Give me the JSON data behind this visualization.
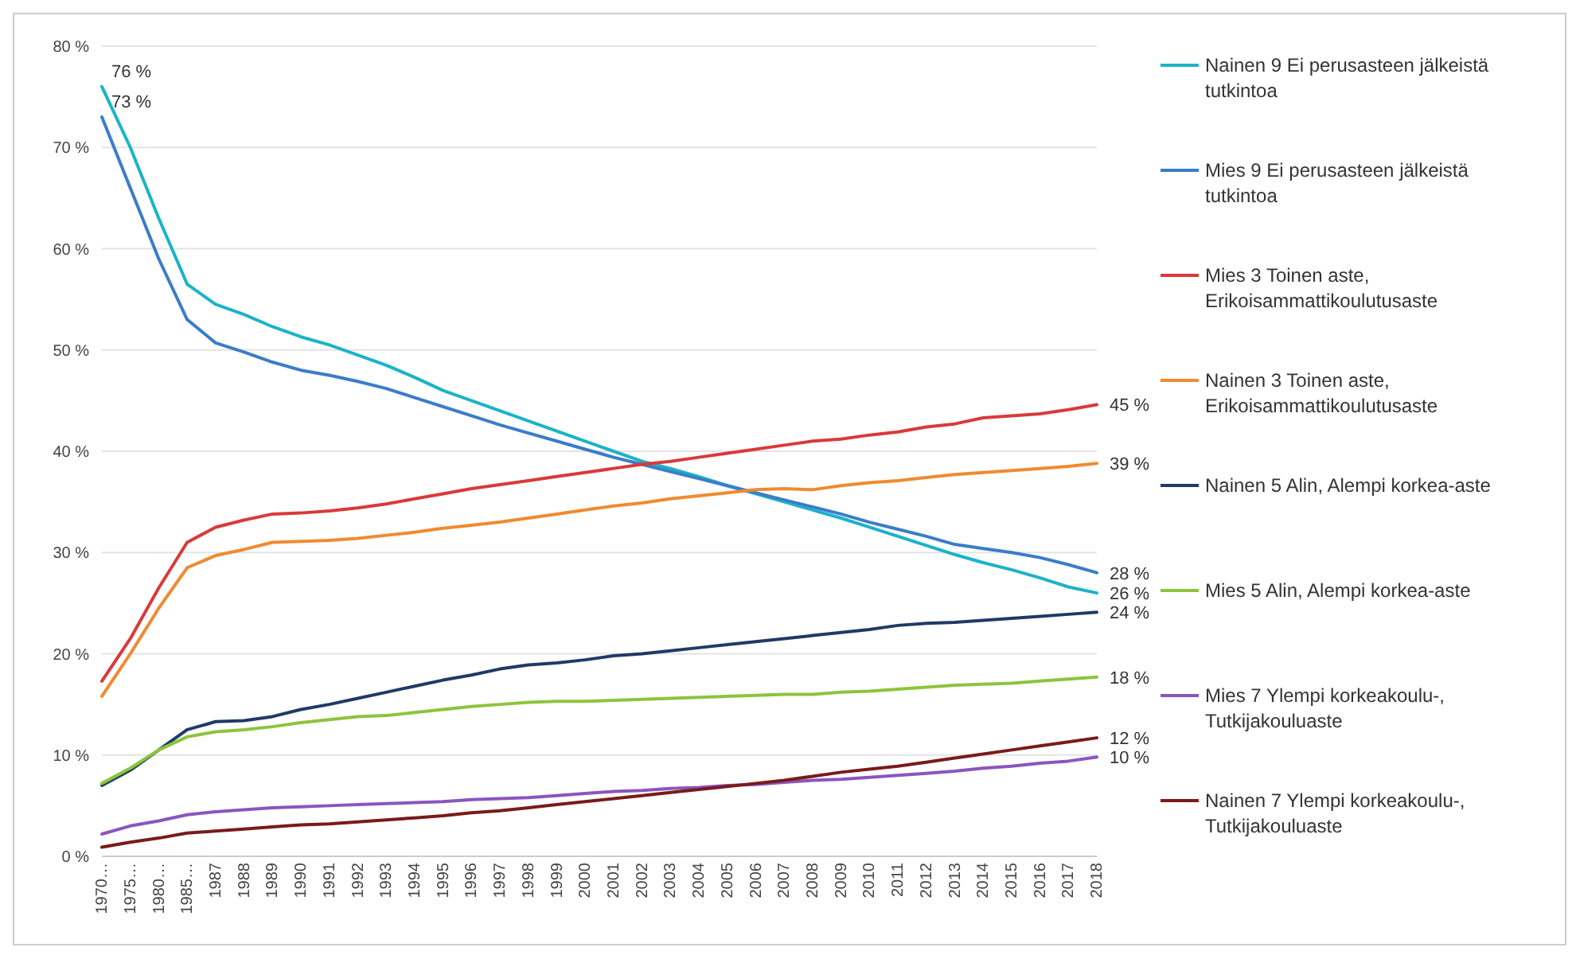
{
  "chart_data": {
    "type": "line",
    "categories": [
      "1970…",
      "1975…",
      "1980…",
      "1985…",
      "1987",
      "1988",
      "1989",
      "1990",
      "1991",
      "1992",
      "1993",
      "1994",
      "1995",
      "1996",
      "1997",
      "1998",
      "1999",
      "2000",
      "2001",
      "2002",
      "2003",
      "2004",
      "2005",
      "2006",
      "2007",
      "2008",
      "2009",
      "2010",
      "2011",
      "2012",
      "2013",
      "2014",
      "2015",
      "2016",
      "2017",
      "2018"
    ],
    "ylim": [
      0,
      80
    ],
    "yticks": [
      {
        "value": 0,
        "label": "0 %"
      },
      {
        "value": 10,
        "label": "10 %"
      },
      {
        "value": 20,
        "label": "20 %"
      },
      {
        "value": 30,
        "label": "30 %"
      },
      {
        "value": 40,
        "label": "40 %"
      },
      {
        "value": 50,
        "label": "50 %"
      },
      {
        "value": 60,
        "label": "60 %"
      },
      {
        "value": 70,
        "label": "70 %"
      },
      {
        "value": 80,
        "label": "80 %"
      }
    ],
    "grid": "y",
    "legend": "right",
    "marker": "none",
    "line_style": "solid",
    "series": [
      {
        "name": "Nainen 9 Ei perusasteen jälkeistä tutkintoa",
        "color": "#1bb3c8",
        "values": [
          76,
          70,
          63,
          56.5,
          54.5,
          53.5,
          52.3,
          51.3,
          50.5,
          49.5,
          48.5,
          47.3,
          46,
          45,
          44,
          43,
          42,
          41,
          40,
          39,
          38.3,
          37.5,
          36.6,
          35.8,
          35,
          34.2,
          33.4,
          32.5,
          31.6,
          30.7,
          29.8,
          29,
          28.3,
          27.5,
          26.6,
          26
        ],
        "value_labels": [
          "76 %",
          null,
          null,
          null,
          null,
          null,
          null,
          null,
          null,
          null,
          null,
          null,
          null,
          null,
          null,
          null,
          null,
          null,
          null,
          null,
          null,
          null,
          null,
          null,
          null,
          null,
          null,
          null,
          null,
          null,
          null,
          null,
          null,
          null,
          null,
          "26 %"
        ]
      },
      {
        "name": "Mies 9 Ei perusasteen jälkeistä tutkintoa",
        "color": "#3a7dc9",
        "values": [
          73,
          66,
          59,
          53,
          50.7,
          49.8,
          48.8,
          48,
          47.5,
          46.9,
          46.2,
          45.3,
          44.4,
          43.5,
          42.6,
          41.8,
          41,
          40.2,
          39.4,
          38.7,
          38,
          37.3,
          36.6,
          35.9,
          35.2,
          34.5,
          33.8,
          33,
          32.3,
          31.6,
          30.8,
          30.4,
          30,
          29.5,
          28.8,
          28
        ],
        "value_labels": [
          "73 %",
          null,
          null,
          null,
          null,
          null,
          null,
          null,
          null,
          null,
          null,
          null,
          null,
          null,
          null,
          null,
          null,
          null,
          null,
          null,
          null,
          null,
          null,
          null,
          null,
          null,
          null,
          null,
          null,
          null,
          null,
          null,
          null,
          null,
          null,
          "28 %"
        ]
      },
      {
        "name": "Mies 3 Toinen aste, Erikoisammattikoulutusaste",
        "color": "#d93a3a",
        "values": [
          17.3,
          21.5,
          26.5,
          31,
          32.5,
          33.2,
          33.8,
          33.9,
          34.1,
          34.4,
          34.8,
          35.3,
          35.8,
          36.3,
          36.7,
          37.1,
          37.5,
          37.9,
          38.3,
          38.7,
          39,
          39.4,
          39.8,
          40.2,
          40.6,
          41,
          41.2,
          41.6,
          41.9,
          42.4,
          42.7,
          43.3,
          43.5,
          43.7,
          44.1,
          44.6
        ],
        "value_labels": [
          null,
          null,
          null,
          null,
          null,
          null,
          null,
          null,
          null,
          null,
          null,
          null,
          null,
          null,
          null,
          null,
          null,
          null,
          null,
          null,
          null,
          null,
          null,
          null,
          null,
          null,
          null,
          null,
          null,
          null,
          null,
          null,
          null,
          null,
          null,
          "45 %"
        ]
      },
      {
        "name": "Nainen 3 Toinen aste, Erikoisammattikoulutusaste",
        "color": "#f08a30",
        "values": [
          15.8,
          20,
          24.5,
          28.5,
          29.7,
          30.3,
          31,
          31.1,
          31.2,
          31.4,
          31.7,
          32,
          32.4,
          32.7,
          33,
          33.4,
          33.8,
          34.2,
          34.6,
          34.9,
          35.3,
          35.6,
          35.9,
          36.2,
          36.3,
          36.2,
          36.6,
          36.9,
          37.1,
          37.4,
          37.7,
          37.9,
          38.1,
          38.3,
          38.5,
          38.8
        ],
        "value_labels": [
          null,
          null,
          null,
          null,
          null,
          null,
          null,
          null,
          null,
          null,
          null,
          null,
          null,
          null,
          null,
          null,
          null,
          null,
          null,
          null,
          null,
          null,
          null,
          null,
          null,
          null,
          null,
          null,
          null,
          null,
          null,
          null,
          null,
          null,
          null,
          "39 %"
        ]
      },
      {
        "name": "Nainen 5 Alin, Alempi korkea-aste",
        "color": "#1f3a66",
        "values": [
          7,
          8.5,
          10.5,
          12.5,
          13.3,
          13.4,
          13.8,
          14.5,
          15,
          15.6,
          16.2,
          16.8,
          17.4,
          17.9,
          18.5,
          18.9,
          19.1,
          19.4,
          19.8,
          20,
          20.3,
          20.6,
          20.9,
          21.2,
          21.5,
          21.8,
          22.1,
          22.4,
          22.8,
          23,
          23.1,
          23.3,
          23.5,
          23.7,
          23.9,
          24.1
        ],
        "value_labels": [
          null,
          null,
          null,
          null,
          null,
          null,
          null,
          null,
          null,
          null,
          null,
          null,
          null,
          null,
          null,
          null,
          null,
          null,
          null,
          null,
          null,
          null,
          null,
          null,
          null,
          null,
          null,
          null,
          null,
          null,
          null,
          null,
          null,
          null,
          null,
          "24 %"
        ]
      },
      {
        "name": "Mies 5 Alin, Alempi korkea-aste",
        "color": "#8cc43c",
        "values": [
          7.2,
          8.7,
          10.5,
          11.8,
          12.3,
          12.5,
          12.8,
          13.2,
          13.5,
          13.8,
          13.9,
          14.2,
          14.5,
          14.8,
          15,
          15.2,
          15.3,
          15.3,
          15.4,
          15.5,
          15.6,
          15.7,
          15.8,
          15.9,
          16,
          16,
          16.2,
          16.3,
          16.5,
          16.7,
          16.9,
          17,
          17.1,
          17.3,
          17.5,
          17.7
        ],
        "value_labels": [
          null,
          null,
          null,
          null,
          null,
          null,
          null,
          null,
          null,
          null,
          null,
          null,
          null,
          null,
          null,
          null,
          null,
          null,
          null,
          null,
          null,
          null,
          null,
          null,
          null,
          null,
          null,
          null,
          null,
          null,
          null,
          null,
          null,
          null,
          null,
          "18 %"
        ]
      },
      {
        "name": "Mies 7 Ylempi korkeakoulu-, Tutkijakouluaste",
        "color": "#8a55c0",
        "values": [
          2.2,
          3,
          3.5,
          4.1,
          4.4,
          4.6,
          4.8,
          4.9,
          5,
          5.1,
          5.2,
          5.3,
          5.4,
          5.6,
          5.7,
          5.8,
          6,
          6.2,
          6.4,
          6.5,
          6.7,
          6.8,
          7,
          7.1,
          7.3,
          7.5,
          7.6,
          7.8,
          8,
          8.2,
          8.4,
          8.7,
          8.9,
          9.2,
          9.4,
          9.8
        ],
        "value_labels": [
          null,
          null,
          null,
          null,
          null,
          null,
          null,
          null,
          null,
          null,
          null,
          null,
          null,
          null,
          null,
          null,
          null,
          null,
          null,
          null,
          null,
          null,
          null,
          null,
          null,
          null,
          null,
          null,
          null,
          null,
          null,
          null,
          null,
          null,
          null,
          "10 %"
        ]
      },
      {
        "name": "Nainen 7 Ylempi korkeakoulu-, Tutkijakouluaste",
        "color": "#7a1a1a",
        "values": [
          0.9,
          1.4,
          1.8,
          2.3,
          2.5,
          2.7,
          2.9,
          3.1,
          3.2,
          3.4,
          3.6,
          3.8,
          4,
          4.3,
          4.5,
          4.8,
          5.1,
          5.4,
          5.7,
          6,
          6.3,
          6.6,
          6.9,
          7.2,
          7.5,
          7.9,
          8.3,
          8.6,
          8.9,
          9.3,
          9.7,
          10.1,
          10.5,
          10.9,
          11.3,
          11.7
        ],
        "value_labels": [
          null,
          null,
          null,
          null,
          null,
          null,
          null,
          null,
          null,
          null,
          null,
          null,
          null,
          null,
          null,
          null,
          null,
          null,
          null,
          null,
          null,
          null,
          null,
          null,
          null,
          null,
          null,
          null,
          null,
          null,
          null,
          null,
          null,
          null,
          null,
          "12 %"
        ]
      }
    ]
  }
}
